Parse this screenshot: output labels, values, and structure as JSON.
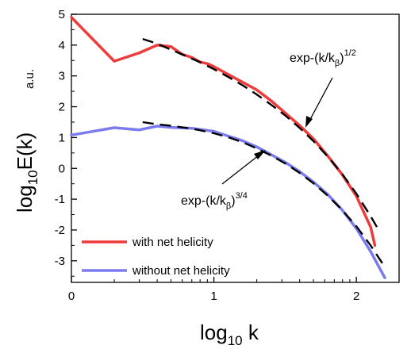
{
  "chart_data": {
    "type": "line",
    "x_ticks": [
      "0",
      "1",
      "2"
    ],
    "y_ticks": [
      "5",
      "4",
      "3",
      "2",
      "1",
      "0",
      "-1",
      "-2",
      "-3"
    ],
    "xlim": [
      0,
      2.3
    ],
    "ylim": [
      -3.7,
      5
    ],
    "xlabel": {
      "main": "log",
      "sub": "10",
      "tail": " k"
    },
    "ylabel": {
      "main": "log",
      "sub": "10",
      "tail": "E(k)",
      "units": "a.u."
    },
    "series": [
      {
        "name": "with net helicity",
        "color": "#ee3b3b",
        "x": [
          0,
          0.301,
          0.477,
          0.602,
          0.699,
          0.778,
          0.845,
          0.903,
          0.954,
          1.0,
          1.1,
          1.2,
          1.3,
          1.4,
          1.5,
          1.6,
          1.7,
          1.8,
          1.9,
          2.0,
          2.1,
          2.13
        ],
        "y": [
          4.9,
          3.48,
          3.75,
          4.0,
          3.95,
          3.7,
          3.6,
          3.45,
          3.4,
          3.3,
          3.05,
          2.8,
          2.55,
          2.2,
          1.8,
          1.4,
          0.95,
          0.4,
          -0.2,
          -0.9,
          -1.9,
          -2.5
        ]
      },
      {
        "name": "without net helicity",
        "color": "#7b7bf0",
        "x": [
          0,
          0.301,
          0.477,
          0.602,
          0.699,
          0.845,
          1.0,
          1.1,
          1.2,
          1.3,
          1.4,
          1.5,
          1.6,
          1.7,
          1.8,
          1.9,
          2.0,
          2.1,
          2.2
        ],
        "y": [
          1.08,
          1.32,
          1.25,
          1.37,
          1.33,
          1.3,
          1.2,
          1.05,
          0.9,
          0.7,
          0.45,
          0.2,
          -0.1,
          -0.45,
          -0.85,
          -1.35,
          -1.95,
          -2.7,
          -3.55
        ]
      }
    ],
    "fits": [
      {
        "label": "exp-(k/kβ)^1/2",
        "text": "exp-(k/k",
        "sub": "β",
        "sup": "1/2",
        "color": "#000000",
        "x": [
          0.5,
          0.6,
          0.7,
          0.8,
          0.9,
          1.0,
          1.1,
          1.2,
          1.3,
          1.4,
          1.5,
          1.6,
          1.7,
          1.8,
          1.9,
          2.0,
          2.1,
          2.15
        ],
        "y": [
          4.2,
          4.05,
          3.85,
          3.65,
          3.45,
          3.22,
          2.97,
          2.7,
          2.4,
          2.07,
          1.72,
          1.32,
          0.88,
          0.38,
          -0.18,
          -0.82,
          -1.55,
          -1.95
        ]
      },
      {
        "label": "exp-(k/kβ)^3/4",
        "text": "exp-(k/k",
        "sub": "β",
        "sup": "3/4",
        "color": "#000000",
        "x": [
          0.5,
          0.6,
          0.7,
          0.8,
          0.9,
          1.0,
          1.1,
          1.2,
          1.3,
          1.4,
          1.5,
          1.6,
          1.7,
          1.8,
          1.9,
          2.0,
          2.1,
          2.2
        ],
        "y": [
          1.5,
          1.43,
          1.38,
          1.32,
          1.24,
          1.14,
          1.01,
          0.85,
          0.65,
          0.42,
          0.16,
          -0.14,
          -0.49,
          -0.89,
          -1.35,
          -1.88,
          -2.5,
          -3.2
        ]
      }
    ],
    "legend": [
      {
        "label": "with net helicity",
        "color": "#ee3b3b"
      },
      {
        "label": "without net helicity",
        "color": "#7b7bf0"
      }
    ],
    "grid": false,
    "legend_position": "bottom-left"
  }
}
